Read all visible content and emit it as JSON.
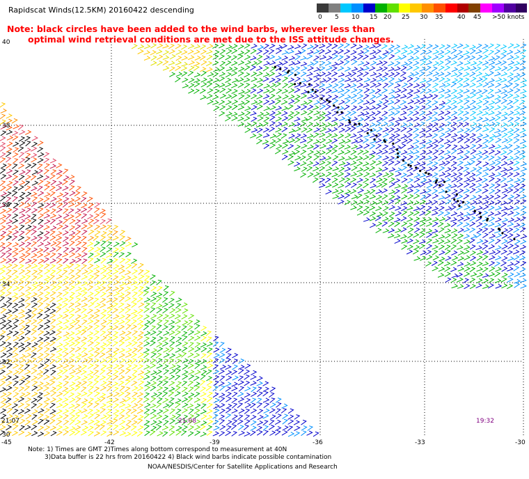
{
  "title": "Rapidscat Winds(12.5KM) 20160422 descending",
  "note_line1": "Note: black circles have been added to the wind barbs, wherever less than",
  "note_line2": "optimal wind retrieval conditions are met due to the ISS attitude changes.",
  "legend": {
    "labels": [
      "0",
      "5",
      "10",
      "15",
      "20",
      "25",
      "30",
      "35",
      "40",
      "45",
      ">50 knots"
    ],
    "colors": [
      "#3a3a3a",
      "#808080",
      "#00c8ff",
      "#0090ff",
      "#0000cc",
      "#00b000",
      "#60e000",
      "#ffff00",
      "#ffc800",
      "#ff9000",
      "#ff5000",
      "#ff0000",
      "#b00000",
      "#804000",
      "#ff00ff",
      "#a000ff",
      "#5000a0",
      "#300060"
    ]
  },
  "axes": {
    "lat_labels": [
      "40",
      "38",
      "36",
      "34",
      "32",
      "30"
    ],
    "lon_labels": [
      "-45",
      "-42",
      "-39",
      "-36",
      "-33",
      "-30"
    ]
  },
  "times": {
    "left": "21:07",
    "mid": "21:08",
    "right": "19:32"
  },
  "footer": {
    "line1": "Note: 1) Times are GMT 2)Times along bottom correspond to measurement at 40N",
    "line2": "3)Data buffer is 22 hrs from 20160422 4) Black wind barbs indicate possible contamination",
    "line3": "NOAA/NESDIS/Center for Satellite Applications and Research"
  },
  "colors": {
    "note": "#ff0000",
    "time_left": "#000000",
    "time_mid": "#800080",
    "time_right": "#800080"
  }
}
